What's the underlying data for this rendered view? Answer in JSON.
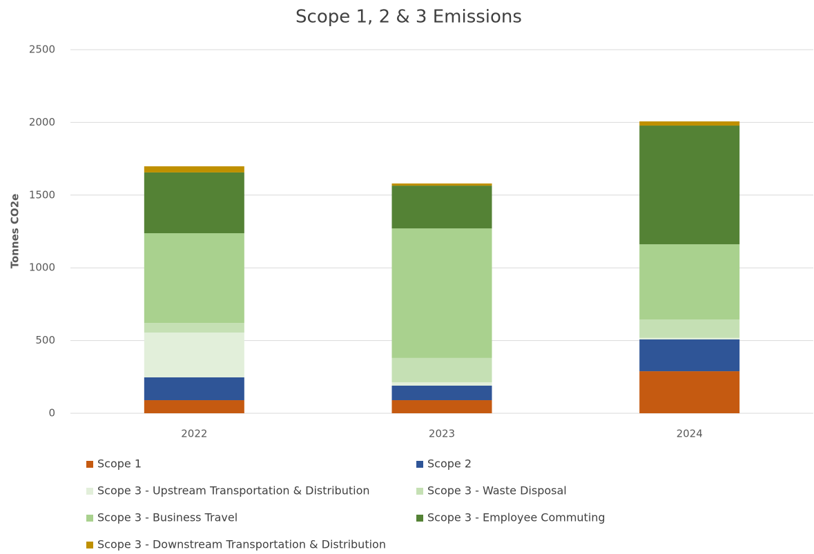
{
  "chart_data": {
    "type": "stacked_bar",
    "title": "Scope 1, 2 & 3 Emissions",
    "y_label": "Tonnes CO2e",
    "categories": [
      "2022",
      "2023",
      "2024"
    ],
    "series": [
      {
        "name": "Scope 1",
        "color": "#c55a11",
        "values": [
          90,
          90,
          289
        ]
      },
      {
        "name": "Scope 2",
        "color": "#2f5597",
        "values": [
          157,
          100,
          219
        ]
      },
      {
        "name": "Scope 3 - Upstream Transportation & Distribution",
        "color": "#e2efda",
        "values": [
          308,
          23,
          10
        ]
      },
      {
        "name": "Scope 3 - Waste Disposal",
        "color": "#c5e0b4",
        "values": [
          66,
          167,
          127
        ]
      },
      {
        "name": "Scope 3 - Business Travel",
        "color": "#a9d18e",
        "values": [
          617,
          891,
          517
        ]
      },
      {
        "name": "Scope 3 - Employee Commuting",
        "color": "#548235",
        "values": [
          418,
          294,
          816
        ]
      },
      {
        "name": "Scope 3 - Downstream Transportation & Distribution",
        "color": "#bf9000",
        "values": [
          42,
          15,
          29
        ]
      }
    ],
    "ylim": [
      0,
      2500
    ],
    "yticks": [
      0,
      500,
      1000,
      1500,
      2000,
      2500
    ],
    "grid": true,
    "legend": "bottom"
  }
}
